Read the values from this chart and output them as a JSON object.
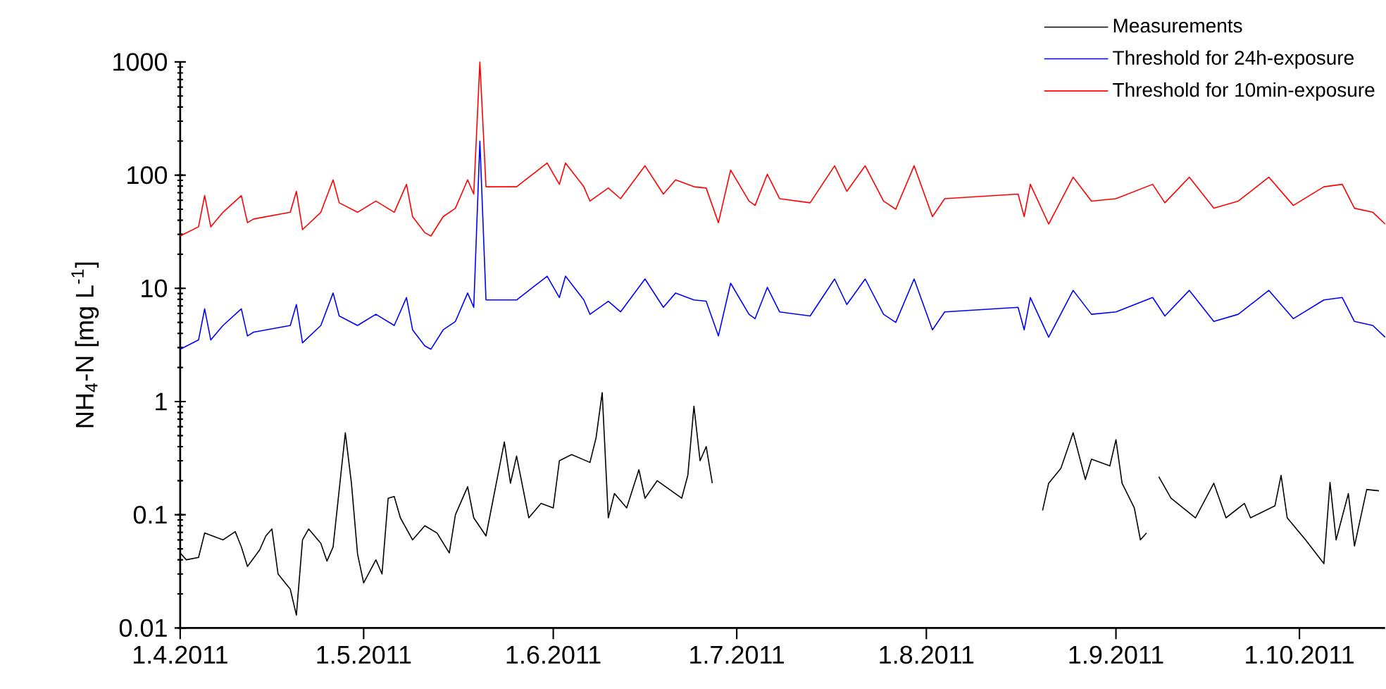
{
  "chart_data": {
    "type": "line",
    "ylabel": "NH$_{4}$-N [mg L$^{-1}$]",
    "log": "y",
    "legend": "top right",
    "ylim": [
      0.01,
      1000
    ],
    "yticks": [
      0.01,
      0.1,
      1,
      10,
      100,
      1000
    ],
    "xlim": [
      "2011-04-01",
      "2011-10-15"
    ],
    "xticks": [
      {
        "value": "2011-04-01",
        "label": "1.4.2011"
      },
      {
        "value": "2011-05-01",
        "label": "1.5.2011"
      },
      {
        "value": "2011-06-01",
        "label": "1.6.2011"
      },
      {
        "value": "2011-07-01",
        "label": "1.7.2011"
      },
      {
        "value": "2011-08-01",
        "label": "1.8.2011"
      },
      {
        "value": "2011-09-01",
        "label": "1.9.2011"
      },
      {
        "value": "2011-10-01",
        "label": "1.10.2011"
      }
    ],
    "x": [
      "2011-04-01",
      "2011-04-04",
      "2011-04-05",
      "2011-04-06",
      "2011-04-08",
      "2011-04-11",
      "2011-04-12",
      "2011-04-13",
      "2011-04-19",
      "2011-04-20",
      "2011-04-21",
      "2011-04-24",
      "2011-04-26",
      "2011-04-27",
      "2011-04-30",
      "2011-05-03",
      "2011-05-06",
      "2011-05-08",
      "2011-05-09",
      "2011-05-11",
      "2011-05-12",
      "2011-05-14",
      "2011-05-16",
      "2011-05-18",
      "2011-05-19",
      "2011-05-20",
      "2011-05-21",
      "2011-05-23",
      "2011-05-26",
      "2011-05-31",
      "2011-06-02",
      "2011-06-03",
      "2011-06-06",
      "2011-06-07",
      "2011-06-10",
      "2011-06-12",
      "2011-06-16",
      "2011-06-19",
      "2011-06-21",
      "2011-06-24",
      "2011-06-26",
      "2011-06-28",
      "2011-06-30",
      "2011-07-03",
      "2011-07-04",
      "2011-07-06",
      "2011-07-08",
      "2011-07-13",
      "2011-07-17",
      "2011-07-19",
      "2011-07-22",
      "2011-07-25",
      "2011-07-27",
      "2011-07-30",
      "2011-08-02",
      "2011-08-04",
      "2011-08-16",
      "2011-08-17",
      "2011-08-18",
      "2011-08-21",
      "2011-08-25",
      "2011-08-28",
      "2011-09-01",
      "2011-09-07",
      "2011-09-09",
      "2011-09-13",
      "2011-09-17",
      "2011-09-21",
      "2011-09-26",
      "2011-09-30",
      "2011-10-05",
      "2011-10-08",
      "2011-10-10",
      "2011-10-13",
      "2011-10-15"
    ],
    "series": [
      {
        "name": "Measurements",
        "color": "#000000",
        "x": [
          "2011-04-01",
          "2011-04-02",
          "2011-04-04",
          "2011-04-05",
          "2011-04-08",
          "2011-04-10",
          "2011-04-11",
          "2011-04-12",
          "2011-04-14",
          "2011-04-15",
          "2011-04-16",
          "2011-04-17",
          "2011-04-19",
          "2011-04-20",
          "2011-04-21",
          "2011-04-22",
          "2011-04-24",
          "2011-04-25",
          "2011-04-26",
          "2011-04-28",
          "2011-04-29",
          "2011-04-30",
          "2011-05-01",
          "2011-05-03",
          "2011-05-04",
          "2011-05-05",
          "2011-05-06",
          "2011-05-07",
          "2011-05-09",
          "2011-05-11",
          "2011-05-13",
          "2011-05-15",
          "2011-05-16",
          "2011-05-18",
          "2011-05-19",
          "2011-05-21",
          "2011-05-24",
          "2011-05-25",
          "2011-05-26",
          "2011-05-28",
          "2011-05-30",
          "2011-06-01",
          "2011-06-02",
          "2011-06-04",
          "2011-06-07",
          "2011-06-08",
          "2011-06-09",
          "2011-06-10",
          "2011-06-11",
          "2011-06-13",
          "2011-06-15",
          "2011-06-16",
          "2011-06-18",
          "2011-06-22",
          "2011-06-23",
          "2011-06-24",
          "2011-06-25",
          "2011-06-26",
          "2011-06-27",
          "2011-07-15",
          "2011-08-20",
          "2011-08-21",
          "2011-08-23",
          "2011-08-25",
          "2011-08-27",
          "2011-08-28",
          "2011-08-31",
          "2011-09-01",
          "2011-09-02",
          "2011-09-04",
          "2011-09-05",
          "2011-09-06",
          "2011-09-07",
          "2011-09-08",
          "2011-09-10",
          "2011-09-14",
          "2011-09-17",
          "2011-09-19",
          "2011-09-22",
          "2011-09-23",
          "2011-09-27",
          "2011-09-28",
          "2011-09-29",
          "2011-10-02",
          "2011-10-05",
          "2011-10-06",
          "2011-10-07",
          "2011-10-09",
          "2011-10-10",
          "2011-10-12",
          "2011-10-14"
        ],
        "values": [
          0.046,
          0.04,
          0.042,
          0.069,
          0.06,
          0.071,
          0.052,
          0.035,
          0.049,
          0.065,
          0.075,
          0.03,
          0.022,
          0.013,
          0.06,
          0.075,
          0.056,
          0.039,
          0.052,
          0.53,
          0.19,
          0.045,
          0.025,
          0.04,
          0.03,
          0.14,
          0.145,
          0.094,
          0.06,
          0.08,
          0.069,
          0.046,
          0.1,
          0.177,
          0.094,
          0.065,
          0.44,
          0.19,
          0.33,
          0.094,
          0.126,
          0.115,
          0.3,
          0.34,
          0.29,
          0.48,
          1.2,
          0.094,
          0.154,
          0.115,
          0.25,
          0.14,
          0.2,
          0.14,
          0.223,
          0.91,
          0.3,
          0.4,
          0.19,
          null,
          0.109,
          0.19,
          0.257,
          0.53,
          0.205,
          0.31,
          0.27,
          0.46,
          0.19,
          0.115,
          0.06,
          0.069,
          null,
          0.217,
          0.14,
          0.094,
          0.19,
          0.094,
          0.126,
          0.094,
          0.12,
          0.223,
          0.094,
          0.06,
          0.037,
          0.193,
          0.06,
          0.154,
          0.053,
          0.167,
          0.163
        ]
      },
      {
        "name": "Threshold for 24h-exposure",
        "color": "#0000ff",
        "values": [
          2.9,
          3.5,
          6.6,
          3.5,
          4.7,
          6.6,
          3.8,
          4.1,
          4.7,
          7.2,
          3.3,
          4.7,
          9.1,
          5.7,
          4.7,
          5.9,
          4.7,
          8.3,
          4.3,
          3.1,
          2.9,
          4.3,
          5.1,
          9.1,
          6.8,
          200,
          7.9,
          7.9,
          7.9,
          12.8,
          8.3,
          12.8,
          7.9,
          5.9,
          7.7,
          6.2,
          12.1,
          6.8,
          9.1,
          7.9,
          7.7,
          3.8,
          11.1,
          5.9,
          5.4,
          10.2,
          6.2,
          5.7,
          12.1,
          7.2,
          12.1,
          5.9,
          5.0,
          12.1,
          4.3,
          6.2,
          6.8,
          4.3,
          8.3,
          3.7,
          9.6,
          5.9,
          6.2,
          8.3,
          5.7,
          9.6,
          5.1,
          5.9,
          9.6,
          5.4,
          7.9,
          8.3,
          5.1,
          4.7,
          3.7
        ]
      },
      {
        "name": "Threshold for 10min-exposure",
        "color": "#ff0000",
        "values": [
          29,
          35,
          66,
          35,
          47,
          66,
          38,
          41,
          47,
          72,
          33,
          47,
          91,
          57,
          47,
          59,
          47,
          83,
          43,
          31,
          29,
          43,
          51,
          91,
          68,
          1000,
          79,
          79,
          79,
          128,
          83,
          128,
          79,
          59,
          77,
          62,
          121,
          68,
          91,
          79,
          77,
          38,
          111,
          59,
          54,
          102,
          62,
          57,
          121,
          72,
          121,
          59,
          50,
          121,
          43,
          62,
          68,
          43,
          83,
          37,
          96,
          59,
          62,
          83,
          57,
          96,
          51,
          59,
          96,
          54,
          79,
          83,
          51,
          47,
          37
        ]
      }
    ]
  }
}
